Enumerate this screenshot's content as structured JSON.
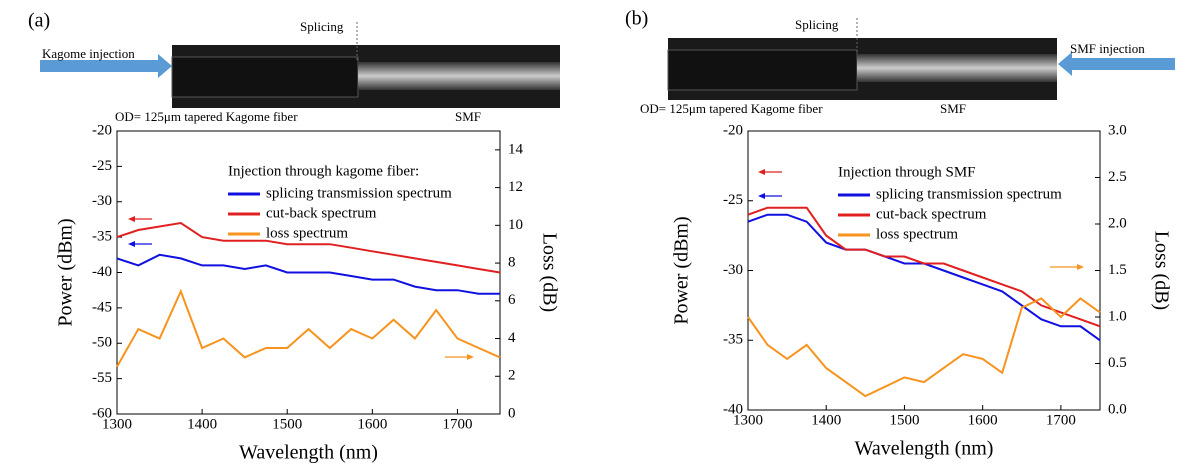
{
  "chart_data": [
    {
      "type": "line",
      "panel_label": "(a)",
      "splice_label": "Splicing",
      "injection_label": "Kagome injection",
      "fiber_label": "OD= 125μm tapered Kagome fiber",
      "smf_label": "SMF",
      "legend_title": "Injection through kagome fiber:",
      "xlabel": "Wavelength (nm)",
      "ylabel": "Power (dBm)",
      "y2label": "Loss (dB)",
      "x": [
        1300,
        1325,
        1350,
        1375,
        1400,
        1425,
        1450,
        1475,
        1500,
        1525,
        1550,
        1575,
        1600,
        1625,
        1650,
        1675,
        1700,
        1725,
        1750
      ],
      "xlim": [
        1300,
        1750
      ],
      "xticks": [
        1300,
        1400,
        1500,
        1600,
        1700
      ],
      "ylim": [
        -60,
        -20
      ],
      "yticks": [
        -60,
        -55,
        -50,
        -45,
        -40,
        -35,
        -30,
        -25,
        -20
      ],
      "y2lim": [
        0,
        15
      ],
      "y2ticks": [
        0,
        2,
        4,
        6,
        8,
        10,
        12,
        14
      ],
      "series": [
        {
          "name": "splicing transmission spectrum",
          "color": "#1010e0",
          "values": [
            -38,
            -39,
            -37.5,
            -38,
            -39,
            -39,
            -39.5,
            -39,
            -40,
            -40,
            -40,
            -40.5,
            -41,
            -41,
            -42,
            -42.5,
            -42.5,
            -43,
            -43
          ]
        },
        {
          "name": "cut-back spectrum",
          "color": "#e02020",
          "values": [
            -35,
            -34,
            -33.5,
            -33,
            -35,
            -35.5,
            -35.5,
            -35.5,
            -36,
            -36,
            -36,
            -36.5,
            -37,
            -37.5,
            -38,
            -38.5,
            -39,
            -39.5,
            -40
          ]
        },
        {
          "name": "loss spectrum",
          "color": "#f7931e",
          "axis": "y2",
          "values": [
            2.5,
            4.5,
            4,
            6.5,
            3.5,
            4,
            3,
            3.5,
            3.5,
            4.5,
            3.5,
            4.5,
            4,
            5,
            4,
            5.5,
            4,
            3.5,
            3
          ]
        }
      ]
    },
    {
      "type": "line",
      "panel_label": "(b)",
      "splice_label": "Splicing",
      "injection_label": "SMF injection",
      "fiber_label": "OD= 125μm tapered Kagome fiber",
      "smf_label": "SMF",
      "legend_title": "Injection through SMF",
      "xlabel": "Wavelength (nm)",
      "ylabel": "Power (dBm)",
      "y2label": "Loss (dB)",
      "x": [
        1300,
        1325,
        1350,
        1375,
        1400,
        1425,
        1450,
        1475,
        1500,
        1525,
        1550,
        1575,
        1600,
        1625,
        1650,
        1675,
        1700,
        1725,
        1750
      ],
      "xlim": [
        1300,
        1750
      ],
      "xticks": [
        1300,
        1400,
        1500,
        1600,
        1700
      ],
      "ylim": [
        -40,
        -20
      ],
      "yticks": [
        -40,
        -35,
        -30,
        -25,
        -20
      ],
      "y2lim": [
        0,
        3
      ],
      "y2ticks": [
        {
          "value": 0,
          "label": "0.0"
        },
        0.5,
        {
          "value": 1,
          "label": "1.0"
        },
        1.5,
        {
          "value": 2,
          "label": "2.0"
        },
        2.5,
        {
          "value": 3,
          "label": "3.0"
        }
      ],
      "series": [
        {
          "name": "splicing transmission spectrum",
          "color": "#1010e0",
          "values": [
            -26.5,
            -26,
            -26,
            -26.5,
            -28,
            -28.5,
            -28.5,
            -29,
            -29.5,
            -29.5,
            -30,
            -30.5,
            -31,
            -31.5,
            -32.5,
            -33.5,
            -34,
            -34,
            -35
          ]
        },
        {
          "name": "cut-back spectrum",
          "color": "#e02020",
          "values": [
            -26,
            -25.5,
            -25.5,
            -25.5,
            -27.5,
            -28.5,
            -28.5,
            -29,
            -29,
            -29.5,
            -29.5,
            -30,
            -30.5,
            -31,
            -31.5,
            -32.5,
            -33,
            -33.5,
            -34
          ]
        },
        {
          "name": "loss spectrum",
          "color": "#f7931e",
          "axis": "y2",
          "values": [
            1.0,
            0.7,
            0.55,
            0.7,
            0.45,
            0.3,
            0.15,
            0.25,
            0.35,
            0.3,
            0.45,
            0.6,
            0.55,
            0.4,
            1.1,
            1.2,
            1.0,
            1.2,
            1.05
          ]
        }
      ]
    }
  ]
}
